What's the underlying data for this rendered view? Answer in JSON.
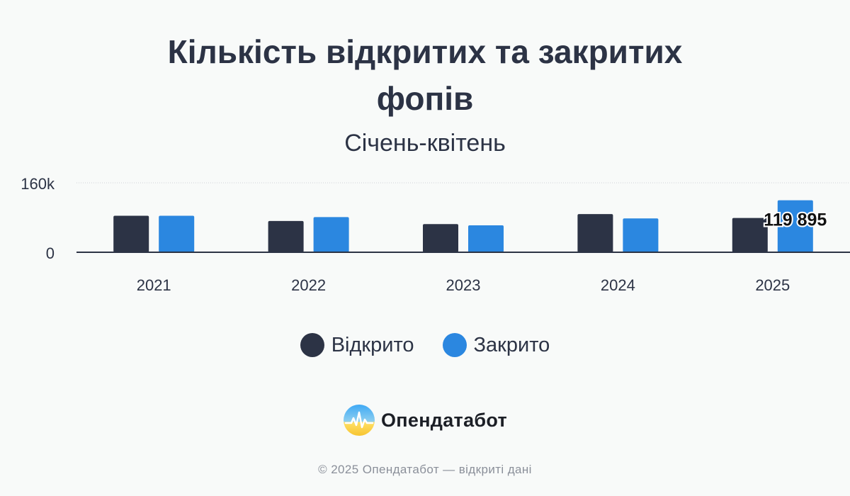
{
  "title_lines": [
    "Кількість відкритих та закритих",
    "фопів"
  ],
  "subtitle": "Січень-квітень",
  "legend": {
    "opened": "Відкрито",
    "closed": "Закрито"
  },
  "brand": {
    "name": "Опендатабот"
  },
  "footer": "© 2025 Опендатабот — відкриті дані",
  "colors": {
    "opened": "#2c3345",
    "closed": "#2b87e0",
    "axis": "#2c3345",
    "grid": "#cfd3d8"
  },
  "chart_data": {
    "type": "bar",
    "categories": [
      "2021",
      "2022",
      "2023",
      "2024",
      "2025"
    ],
    "series": [
      {
        "name": "Відкрито",
        "values": [
          84000,
          72000,
          65000,
          88000,
          79000
        ]
      },
      {
        "name": "Закрито",
        "values": [
          84000,
          81000,
          62000,
          78000,
          119895
        ]
      }
    ],
    "ylim": [
      0,
      160000
    ],
    "yticks": [
      "0",
      "160k"
    ],
    "grid": true,
    "legend_position": "bottom",
    "annotations": [
      {
        "series": "Закрито",
        "category": "2025",
        "label": "119 895"
      }
    ]
  }
}
